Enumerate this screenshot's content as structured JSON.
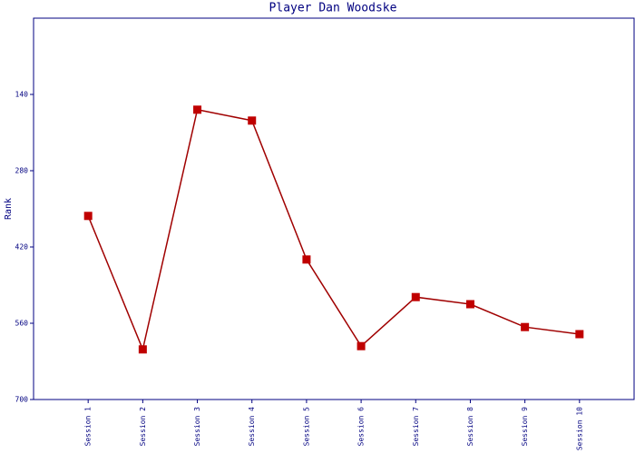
{
  "chart_data": {
    "type": "line",
    "title": "Player Dan Woodske",
    "y_label": "Rank",
    "categories": [
      "Session 1",
      "Session 2",
      "Session 3",
      "Session 4",
      "Session 5",
      "Session 6",
      "Session 7",
      "Session 8",
      "Session 9",
      "Session 10"
    ],
    "values": [
      363,
      608,
      168,
      188,
      443,
      602,
      512,
      525,
      567,
      580
    ],
    "color": "#c00000",
    "line_color": "#a00000",
    "ylim": [
      700,
      0
    ],
    "yticks": [
      140,
      280,
      420,
      560,
      700
    ],
    "grid": false
  }
}
